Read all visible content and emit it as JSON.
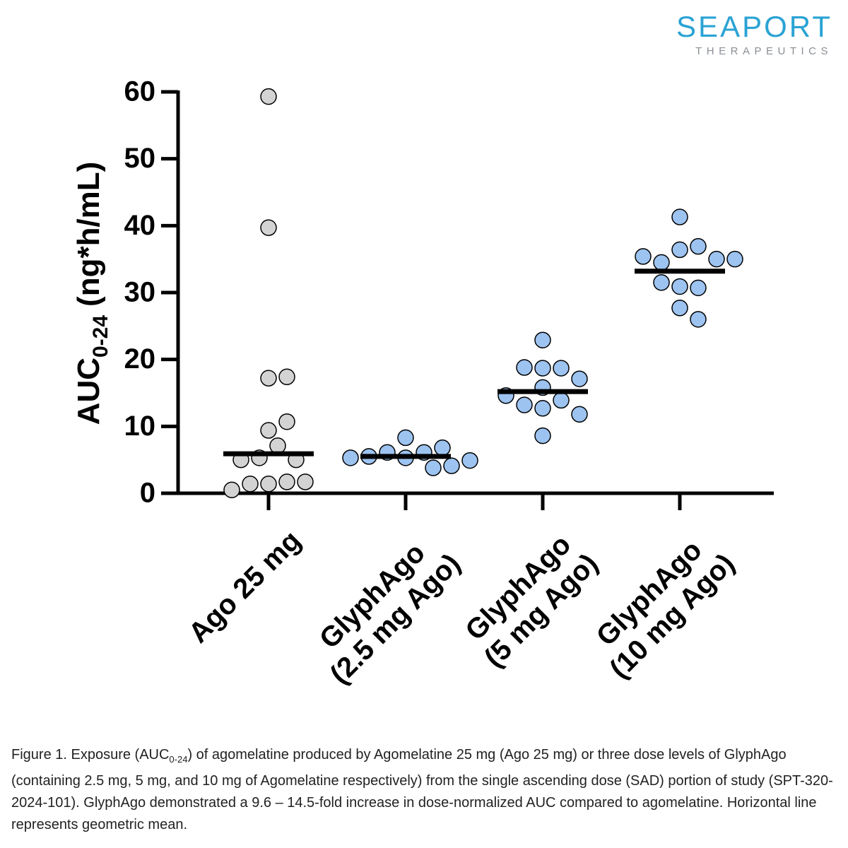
{
  "logo": {
    "name": "SEAPORT",
    "tagline": "THERAPEUTICS"
  },
  "chart_data": {
    "type": "strip",
    "y_label": "AUC",
    "y_label_subscript": "0-24",
    "y_label_unit": "(ng*h/mL)",
    "categories": [
      "Ago 25 mg",
      "GlyphAgo\n(2.5 mg Ago)",
      "GlyphAgo\n(5 mg Ago)",
      "GlyphAgo\n(10 mg Ago)"
    ],
    "colors": [
      "#d3d3d3",
      "#9dc3f0",
      "#9dc3f0",
      "#9dc3f0"
    ],
    "values": [
      [
        59.3,
        39.7,
        17.2,
        17.4,
        9.4,
        10.7,
        7.1,
        5.3,
        5.0,
        5.0,
        1.4,
        1.7,
        1.4,
        1.7,
        0.5
      ],
      [
        8.3,
        6.1,
        5.3,
        6.1,
        3.8,
        5.5,
        6.8,
        4.1,
        5.3,
        4.9
      ],
      [
        22.9,
        18.7,
        18.7,
        18.8,
        17.1,
        15.8,
        13.9,
        12.7,
        13.2,
        14.6,
        11.8,
        8.6
      ],
      [
        41.3,
        36.4,
        36.9,
        34.5,
        35.0,
        35.4,
        35.0,
        30.9,
        30.7,
        31.5,
        27.7,
        26.0
      ]
    ],
    "means": [
      5.9,
      5.5,
      15.2,
      33.2
    ],
    "ylim": [
      0,
      60
    ],
    "yticks": [
      0,
      10,
      20,
      30,
      40,
      50,
      60
    ]
  },
  "caption": {
    "before": "Figure 1. Exposure (AUC",
    "subscript": "0-24",
    "after": ") of agomelatine produced by Agomelatine 25 mg (Ago 25 mg) or three dose levels of GlyphAgo (containing 2.5 mg, 5 mg, and 10 mg of Agomelatine respectively) from the single ascending dose (SAD) portion of study (SPT-320-2024-101). GlyphAgo demonstrated a 9.6 – 14.5-fold increase in dose-normalized AUC compared to agomelatine. Horizontal line represents geometric mean."
  }
}
